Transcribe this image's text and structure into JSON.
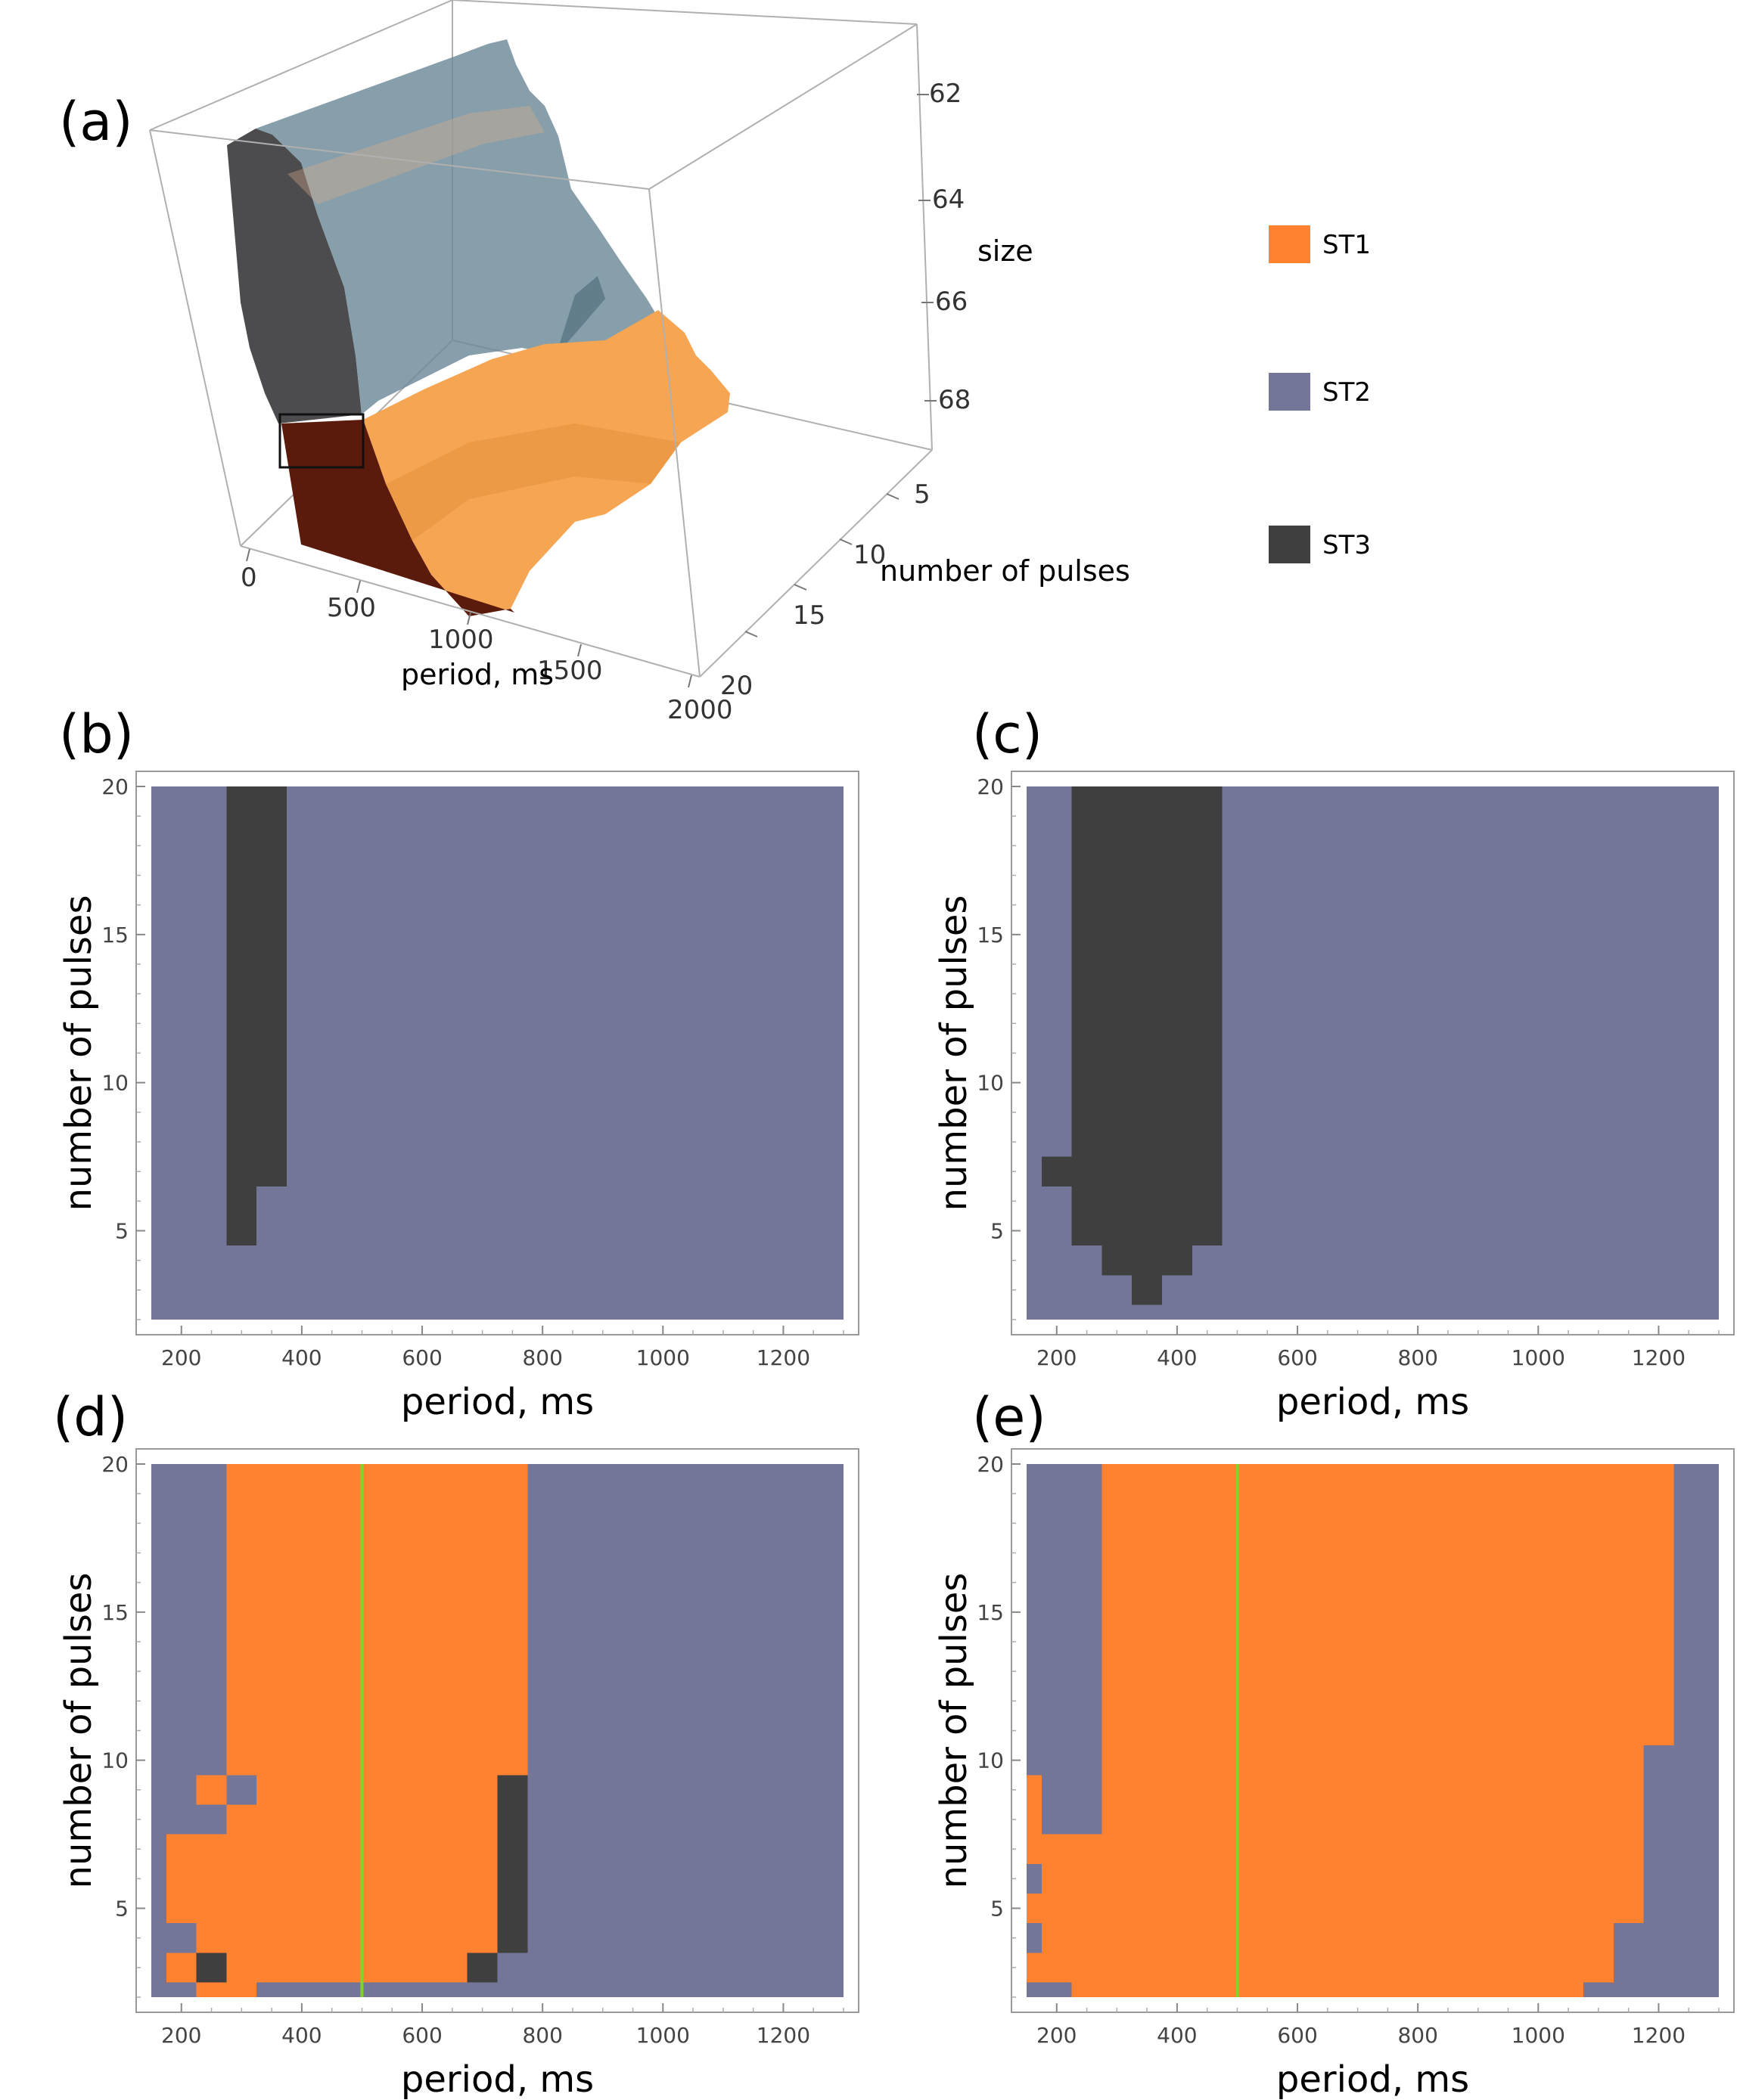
{
  "chart_data": [
    {
      "id": "a",
      "type": "3d-surface",
      "panel_label": "(a)",
      "axes": {
        "x": {
          "label": "period, ms",
          "ticks": [
            "0",
            "500",
            "1000",
            "1500",
            "2000"
          ],
          "range": [
            0,
            2000
          ]
        },
        "y": {
          "label": "number of pulses",
          "ticks": [
            "5",
            "10",
            "15",
            "20"
          ],
          "range": [
            2,
            20
          ]
        },
        "z": {
          "label": "size",
          "ticks": [
            "62",
            "64",
            "66",
            "68"
          ]
        }
      },
      "legend": [
        {
          "name": "ST1",
          "color": "#FF8230"
        },
        {
          "name": "ST2",
          "color": "#737599"
        },
        {
          "name": "ST3",
          "color": "#3F3F3F"
        }
      ]
    },
    {
      "id": "b",
      "type": "heatmap",
      "panel_label": "(b)",
      "xlabel": "period, ms",
      "ylabel": "number of pulses",
      "xlim": [
        150,
        1300
      ],
      "ylim": [
        2,
        20
      ],
      "xticks": [
        "200",
        "400",
        "600",
        "800",
        "1000",
        "1200"
      ],
      "yticks": [
        "5",
        "10",
        "15",
        "20"
      ],
      "background_state": "ST2",
      "regions": [
        {
          "state": "ST3",
          "x0": 275,
          "x1": 325,
          "y0": 4.5,
          "y1": 20
        },
        {
          "state": "ST3",
          "x0": 325,
          "x1": 375,
          "y0": 6.5,
          "y1": 20
        }
      ]
    },
    {
      "id": "c",
      "type": "heatmap",
      "panel_label": "(c)",
      "xlabel": "period, ms",
      "ylabel": "number of pulses",
      "xlim": [
        150,
        1300
      ],
      "ylim": [
        2,
        20
      ],
      "xticks": [
        "200",
        "400",
        "600",
        "800",
        "1000",
        "1200"
      ],
      "yticks": [
        "5",
        "10",
        "15",
        "20"
      ],
      "background_state": "ST2",
      "regions": [
        {
          "state": "ST3",
          "x0": 175,
          "x1": 225,
          "y0": 6.5,
          "y1": 7.5
        },
        {
          "state": "ST3",
          "x0": 225,
          "x1": 275,
          "y0": 4.5,
          "y1": 20
        },
        {
          "state": "ST3",
          "x0": 275,
          "x1": 325,
          "y0": 3.5,
          "y1": 20
        },
        {
          "state": "ST3",
          "x0": 325,
          "x1": 375,
          "y0": 2.5,
          "y1": 20
        },
        {
          "state": "ST3",
          "x0": 375,
          "x1": 425,
          "y0": 3.5,
          "y1": 20
        },
        {
          "state": "ST3",
          "x0": 425,
          "x1": 475,
          "y0": 4.5,
          "y1": 20
        }
      ]
    },
    {
      "id": "d",
      "type": "heatmap",
      "panel_label": "(d)",
      "xlabel": "period, ms",
      "ylabel": "number of pulses",
      "xlim": [
        150,
        1300
      ],
      "ylim": [
        2,
        20
      ],
      "xticks": [
        "200",
        "400",
        "600",
        "800",
        "1000",
        "1200"
      ],
      "yticks": [
        "5",
        "10",
        "15",
        "20"
      ],
      "background_state": "ST2",
      "vline": 500,
      "regions": [
        {
          "state": "ST1",
          "x0": 175,
          "x1": 225,
          "y0": 2.5,
          "y1": 3.5
        },
        {
          "state": "ST1",
          "x0": 175,
          "x1": 225,
          "y0": 4.5,
          "y1": 7.5
        },
        {
          "state": "ST1",
          "x0": 225,
          "x1": 275,
          "y0": 2,
          "y1": 2.5
        },
        {
          "state": "ST3",
          "x0": 225,
          "x1": 275,
          "y0": 2.5,
          "y1": 3.5
        },
        {
          "state": "ST1",
          "x0": 225,
          "x1": 275,
          "y0": 3.5,
          "y1": 7.5
        },
        {
          "state": "ST1",
          "x0": 225,
          "x1": 275,
          "y0": 8.5,
          "y1": 9.5
        },
        {
          "state": "ST1",
          "x0": 275,
          "x1": 325,
          "y0": 2,
          "y1": 8.5
        },
        {
          "state": "ST1",
          "x0": 275,
          "x1": 325,
          "y0": 9.5,
          "y1": 20
        },
        {
          "state": "ST1",
          "x0": 325,
          "x1": 525,
          "y0": 2.5,
          "y1": 20
        },
        {
          "state": "ST1",
          "x0": 525,
          "x1": 675,
          "y0": 2.5,
          "y1": 20
        },
        {
          "state": "ST1",
          "x0": 675,
          "x1": 725,
          "y0": 3.5,
          "y1": 20
        },
        {
          "state": "ST3",
          "x0": 675,
          "x1": 725,
          "y0": 2.5,
          "y1": 3.5
        },
        {
          "state": "ST1",
          "x0": 725,
          "x1": 775,
          "y0": 9.5,
          "y1": 20
        },
        {
          "state": "ST3",
          "x0": 725,
          "x1": 775,
          "y0": 3.5,
          "y1": 9.5
        }
      ]
    },
    {
      "id": "e",
      "type": "heatmap",
      "panel_label": "(e)",
      "xlabel": "period, ms",
      "ylabel": "number of pulses",
      "xlim": [
        150,
        1300
      ],
      "ylim": [
        2,
        20
      ],
      "xticks": [
        "200",
        "400",
        "600",
        "800",
        "1000",
        "1200"
      ],
      "yticks": [
        "5",
        "10",
        "15",
        "20"
      ],
      "background_state": "ST2",
      "vline": 500,
      "regions": [
        {
          "state": "ST1",
          "x0": 150,
          "x1": 175,
          "y0": 2.5,
          "y1": 3.5
        },
        {
          "state": "ST1",
          "x0": 150,
          "x1": 175,
          "y0": 4.5,
          "y1": 5.5
        },
        {
          "state": "ST1",
          "x0": 150,
          "x1": 175,
          "y0": 6.5,
          "y1": 9.5
        },
        {
          "state": "ST1",
          "x0": 175,
          "x1": 275,
          "y0": 2.5,
          "y1": 7.5
        },
        {
          "state": "ST1",
          "x0": 225,
          "x1": 325,
          "y0": 2,
          "y1": 2.5
        },
        {
          "state": "ST1",
          "x0": 275,
          "x1": 1075,
          "y0": 2,
          "y1": 20
        },
        {
          "state": "ST1",
          "x0": 1075,
          "x1": 1125,
          "y0": 2.5,
          "y1": 20
        },
        {
          "state": "ST1",
          "x0": 1125,
          "x1": 1175,
          "y0": 4.5,
          "y1": 20
        },
        {
          "state": "ST1",
          "x0": 1175,
          "x1": 1225,
          "y0": 10.5,
          "y1": 20
        }
      ]
    }
  ],
  "colors": {
    "ST1": "#FF8230",
    "ST2": "#737599",
    "ST3": "#3F3F3F",
    "vline": "#7FD62A",
    "frame": "#999999"
  }
}
